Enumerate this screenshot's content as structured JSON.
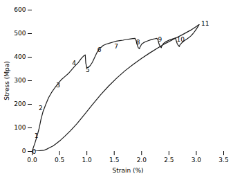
{
  "chart_data": {
    "type": "line",
    "xlabel": "Strain (%)",
    "ylabel": "Stress (Mpa)",
    "xlim": [
      0,
      3.5
    ],
    "ylim": [
      0,
      600
    ],
    "xticks": [
      {
        "value": 0,
        "label": "0.0"
      },
      0.5,
      {
        "value": 1,
        "label": "1.0"
      },
      1.5,
      {
        "value": 2,
        "label": "2.0"
      },
      2.5,
      {
        "value": 3,
        "label": "3.0"
      },
      3.5
    ],
    "yticks": [
      0,
      100,
      200,
      300,
      400,
      500,
      600
    ],
    "series": [
      {
        "color": "#1a1a1a",
        "x": [
          0.0,
          0.02,
          0.05,
          0.09,
          0.13,
          0.16,
          0.2,
          0.25,
          0.3,
          0.36,
          0.42,
          0.48,
          0.54,
          0.6,
          0.66,
          0.72,
          0.78,
          0.84,
          0.9,
          0.94,
          0.96,
          0.97,
          0.98,
          1.0,
          1.03,
          1.06,
          1.1,
          1.14,
          1.18,
          1.22,
          1.26,
          1.3,
          1.36,
          1.42,
          1.48,
          1.54,
          1.6,
          1.66,
          1.72,
          1.78,
          1.84,
          1.88,
          1.9,
          1.92,
          1.94,
          1.96,
          1.97,
          2.0,
          2.04,
          2.08,
          2.12,
          2.16,
          2.2,
          2.24,
          2.28,
          2.3,
          2.32,
          2.34,
          2.36,
          2.37,
          2.4,
          2.44,
          2.48,
          2.52,
          2.56,
          2.6,
          2.62,
          2.63,
          2.65,
          2.67,
          2.69,
          2.7,
          2.74,
          2.78,
          2.82,
          2.86,
          2.9,
          2.94,
          2.98,
          3.02,
          3.05
        ],
        "values": [
          0,
          15,
          35,
          65,
          100,
          135,
          170,
          200,
          228,
          252,
          272,
          290,
          306,
          318,
          330,
          346,
          362,
          376,
          395,
          405,
          408,
          410,
          375,
          355,
          358,
          364,
          378,
          398,
          418,
          432,
          442,
          450,
          456,
          460,
          464,
          468,
          470,
          472,
          475,
          477,
          479,
          480,
          470,
          452,
          440,
          436,
          442,
          455,
          462,
          466,
          470,
          473,
          476,
          478,
          480,
          472,
          455,
          445,
          440,
          448,
          458,
          465,
          470,
          474,
          477,
          480,
          482,
          472,
          458,
          450,
          445,
          452,
          462,
          470,
          476,
          482,
          490,
          500,
          512,
          526,
          538
        ]
      },
      {
        "color": "#1a1a1a",
        "x": [
          3.05,
          3.0,
          2.9,
          2.75,
          2.6,
          2.45,
          2.3,
          2.15,
          2.0,
          1.85,
          1.7,
          1.55,
          1.4,
          1.25,
          1.1,
          0.95,
          0.82,
          0.7,
          0.6,
          0.52,
          0.44,
          0.38,
          0.32,
          0.27,
          0.22,
          0.0
        ],
        "values": [
          538,
          530,
          515,
          496,
          478,
          460,
          440,
          418,
          395,
          370,
          343,
          312,
          278,
          240,
          198,
          155,
          118,
          88,
          65,
          48,
          33,
          23,
          16,
          10,
          5,
          0
        ]
      }
    ],
    "annotations": [
      {
        "text": "0",
        "x": 0,
        "y": -10
      },
      {
        "text": "1",
        "x": 0.04,
        "y": 57
      },
      {
        "text": "2",
        "x": 0.12,
        "y": 175
      },
      {
        "text": "3",
        "x": 0.44,
        "y": 273
      },
      {
        "text": "4",
        "x": 0.73,
        "y": 365
      },
      {
        "text": "5",
        "x": 0.98,
        "y": 337
      },
      {
        "text": "6",
        "x": 1.19,
        "y": 423
      },
      {
        "text": "7",
        "x": 1.5,
        "y": 437
      },
      {
        "text": "8",
        "x": 1.9,
        "y": 453
      },
      {
        "text": "9",
        "x": 2.3,
        "y": 465
      },
      {
        "text": "10",
        "x": 2.64,
        "y": 467
      },
      {
        "text": "11",
        "x": 3.09,
        "y": 533
      }
    ],
    "grid": false
  }
}
